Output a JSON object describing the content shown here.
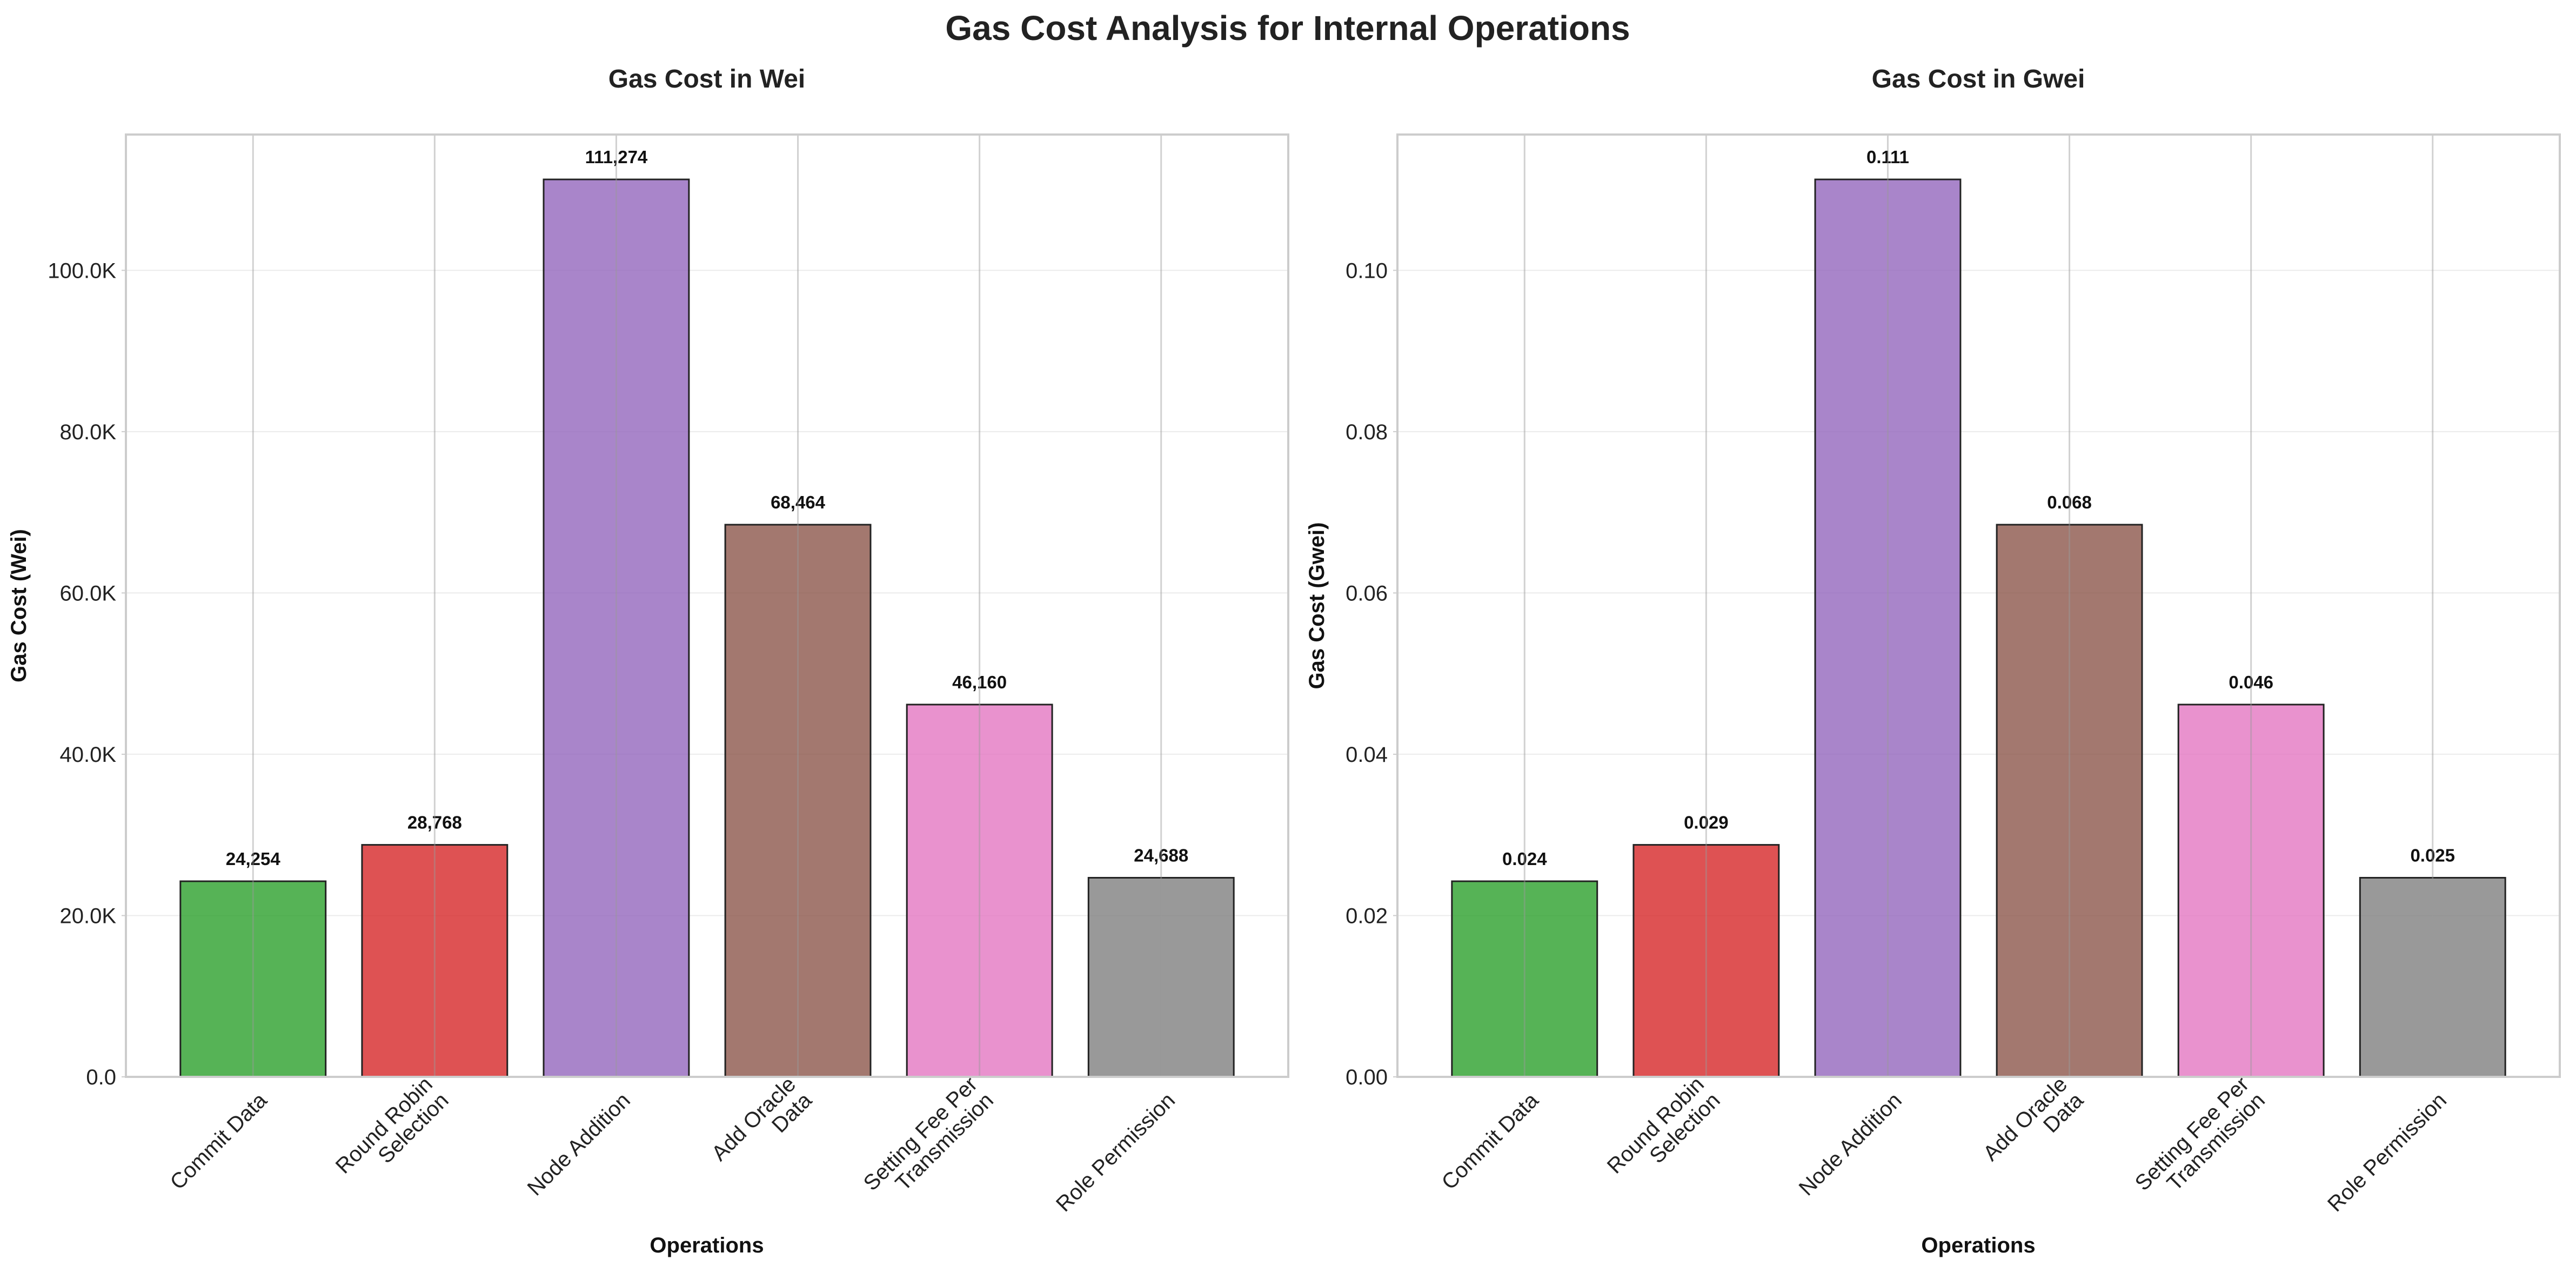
{
  "figure_title": "Gas Cost Analysis for Internal Operations",
  "chart_data": [
    {
      "type": "bar",
      "title": "Gas Cost in Wei",
      "xlabel": "Operations",
      "ylabel": "Gas Cost (Wei)",
      "categories": [
        "Commit Data",
        "Round Robin\nSelection",
        "Node Addition",
        "Add Oracle\nData",
        "Setting Fee Per\nTransmission",
        "Role Permission"
      ],
      "values": [
        24254,
        28768,
        111274,
        68464,
        46160,
        24688
      ],
      "value_labels": [
        "24,254",
        "28,768",
        "111,274",
        "68,464",
        "46,160",
        "24,688"
      ],
      "colors": [
        "#2ca02c",
        "#d62728",
        "#9467bd",
        "#8c564b",
        "#e377c2",
        "#7f7f7f"
      ],
      "yticks": [
        0,
        20000,
        40000,
        60000,
        80000,
        100000
      ],
      "ytick_labels": [
        "0.0",
        "20.0K",
        "40.0K",
        "60.0K",
        "80.0K",
        "100.0K"
      ],
      "ylim": [
        0,
        116838
      ],
      "grid": true,
      "legend": "none"
    },
    {
      "type": "bar",
      "title": "Gas Cost in Gwei",
      "xlabel": "Operations",
      "ylabel": "Gas Cost (Gwei)",
      "categories": [
        "Commit Data",
        "Round Robin\nSelection",
        "Node Addition",
        "Add Oracle\nData",
        "Setting Fee Per\nTransmission",
        "Role Permission"
      ],
      "values": [
        0.024254,
        0.028768,
        0.111274,
        0.068464,
        0.04616,
        0.024688
      ],
      "value_labels": [
        "0.024",
        "0.029",
        "0.111",
        "0.068",
        "0.046",
        "0.025"
      ],
      "colors": [
        "#2ca02c",
        "#d62728",
        "#9467bd",
        "#8c564b",
        "#e377c2",
        "#7f7f7f"
      ],
      "yticks": [
        0,
        0.02,
        0.04,
        0.06,
        0.08,
        0.1
      ],
      "ytick_labels": [
        "0.00",
        "0.02",
        "0.04",
        "0.06",
        "0.08",
        "0.10"
      ],
      "ylim": [
        0,
        0.116838
      ],
      "grid": true,
      "legend": "none"
    }
  ]
}
